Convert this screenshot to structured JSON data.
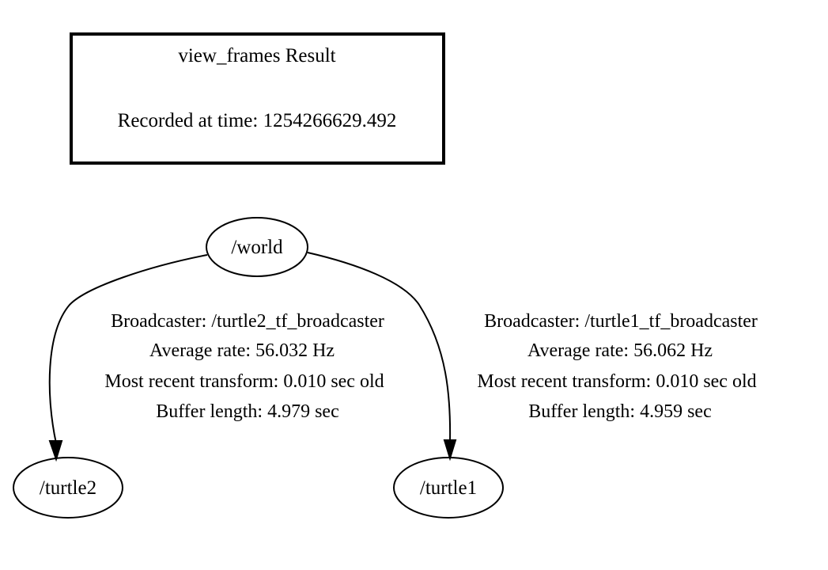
{
  "header": {
    "title": "view_frames Result",
    "recorded": "Recorded at time: 1254266629.492"
  },
  "nodes": {
    "world": "/world",
    "turtle2": "/turtle2",
    "turtle1": "/turtle1"
  },
  "edges": {
    "world_to_turtle2": {
      "broadcaster": "Broadcaster: /turtle2_tf_broadcaster",
      "rate": "Average rate: 56.032 Hz",
      "recent": "Most recent transform: 0.010 sec old",
      "buffer": "Buffer length: 4.979 sec"
    },
    "world_to_turtle1": {
      "broadcaster": "Broadcaster: /turtle1_tf_broadcaster",
      "rate": "Average rate: 56.062 Hz",
      "recent": "Most recent transform: 0.010 sec old",
      "buffer": "Buffer length: 4.959 sec"
    }
  }
}
